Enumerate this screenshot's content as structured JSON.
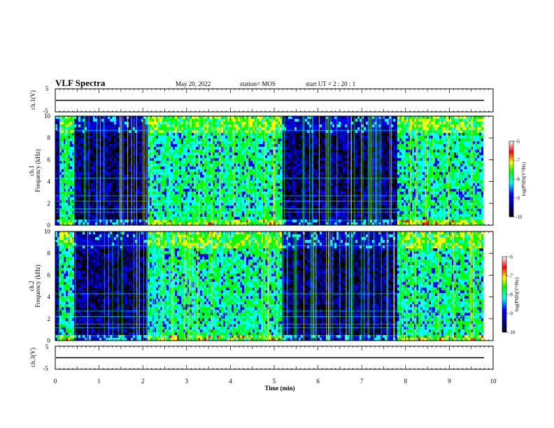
{
  "header": {
    "title": "VLF Spectra",
    "date": "May 20, 2022",
    "station": "station= MOS",
    "start": "start  UT =   2 : 20 : 1"
  },
  "colors": {
    "black": "#000000",
    "dark_blue": "#000080",
    "blue": "#0000ff",
    "cyan": "#00ffff",
    "green": "#00ff00",
    "yellow": "#ffff00",
    "red": "#ff0000",
    "white": "#ffffff"
  },
  "chart_data": [
    {
      "type": "line",
      "ylabel": "ch.1(V)",
      "ylim": [
        -5,
        5
      ],
      "yticks": [
        "5",
        "-5"
      ],
      "x": [
        0,
        10
      ],
      "values": [
        0,
        0
      ]
    },
    {
      "type": "heatmap",
      "ylabel_1": "ch.1",
      "ylabel_2": "Frequency  (kHz)",
      "ylim": [
        0,
        10
      ],
      "yticks": [
        "0",
        "2",
        "4",
        "6",
        "8",
        "10"
      ],
      "colorbar": {
        "label": "log(PSD)(V²/Hz)",
        "range": [
          -10,
          -6
        ],
        "ticks": [
          "-6",
          "-7",
          "-8",
          "-9",
          "-10"
        ]
      },
      "bright_intervals_min": [
        [
          0.05,
          0.4
        ],
        [
          2.1,
          4.1
        ],
        [
          4.1,
          4.65
        ],
        [
          4.65,
          5.15
        ],
        [
          7.8,
          8.7
        ],
        [
          8.7,
          9.8
        ]
      ],
      "dark_intervals_min": [
        [
          0.4,
          2.1
        ],
        [
          5.15,
          7.8
        ]
      ]
    },
    {
      "type": "heatmap",
      "ylabel_1": "ch.2",
      "ylabel_2": "Frequency  (kHz)",
      "ylim": [
        0,
        10
      ],
      "yticks": [
        "0",
        "2",
        "4",
        "6",
        "8",
        "10"
      ],
      "colorbar": {
        "label": "log(PSD)(V²/Hz)",
        "range": [
          -10,
          -6
        ],
        "ticks": [
          "-6",
          "-7",
          "-8",
          "-9",
          "-10"
        ]
      },
      "bright_intervals_min": [
        [
          0.05,
          0.4
        ],
        [
          2.1,
          4.1
        ],
        [
          4.1,
          4.65
        ],
        [
          4.65,
          5.15
        ],
        [
          7.8,
          8.7
        ],
        [
          8.7,
          9.8
        ]
      ],
      "dark_intervals_min": [
        [
          0.4,
          2.1
        ],
        [
          5.15,
          7.8
        ]
      ]
    },
    {
      "type": "line",
      "ylabel": "ch.3(V)",
      "ylim": [
        -5,
        5
      ],
      "yticks": [
        "5",
        "-5"
      ],
      "x": [
        0,
        10
      ],
      "values": [
        0,
        0
      ]
    }
  ],
  "x_axis": {
    "label": "Time  (min)",
    "xlim": [
      0,
      10
    ],
    "ticks": [
      "0",
      "1",
      "2",
      "3",
      "4",
      "5",
      "6",
      "7",
      "8",
      "9",
      "10"
    ]
  }
}
